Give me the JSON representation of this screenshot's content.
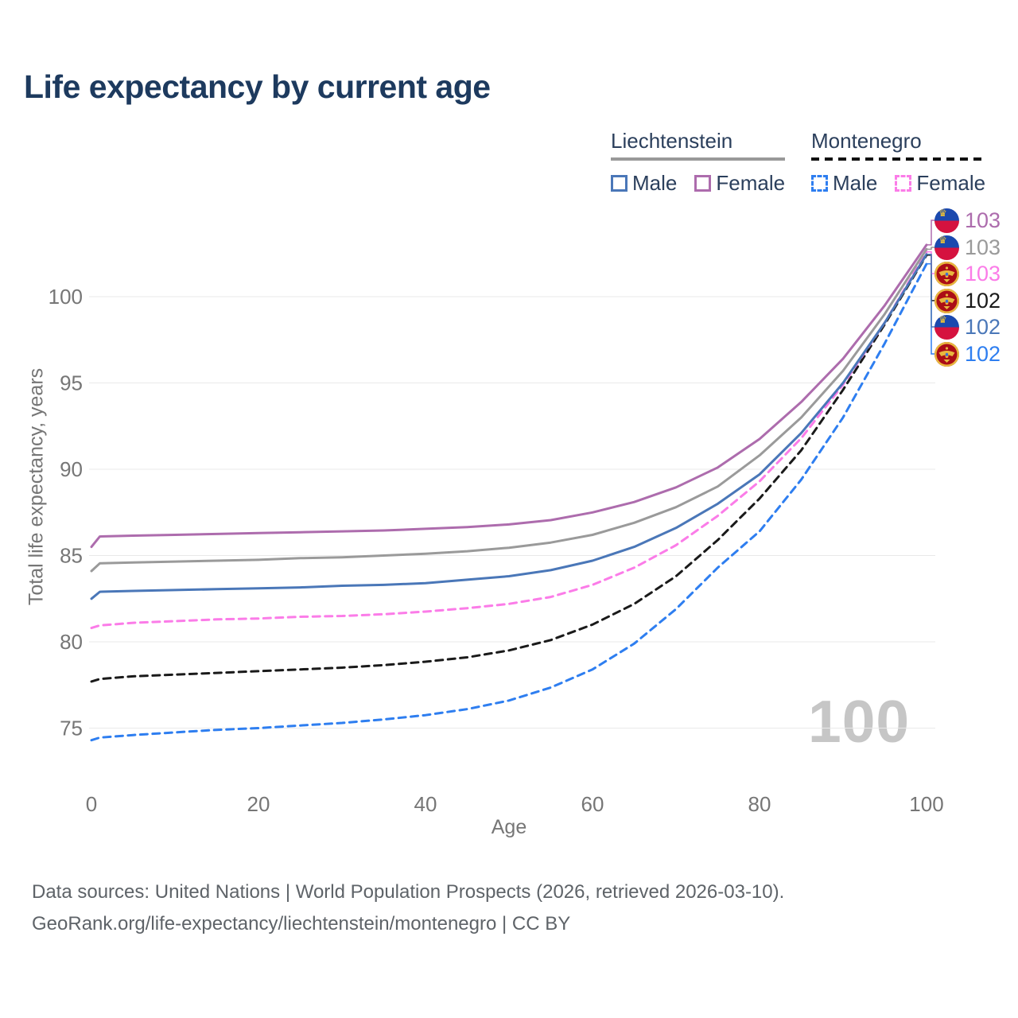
{
  "title": "Life expectancy by current age",
  "legend": {
    "liechtenstein": {
      "name": "Liechtenstein",
      "male_label": "Male",
      "female_label": "Female"
    },
    "montenegro": {
      "name": "Montenegro",
      "male_label": "Male",
      "female_label": "Female"
    }
  },
  "age_watermark": "100",
  "footer": {
    "line1": "Data sources: United Nations | World Population Prospects (2026, retrieved 2026-03-10).",
    "line2": "GeoRank.org/life-expectancy/liechtenstein/montenegro | CC BY"
  },
  "chart_data": {
    "type": "line",
    "title": "Life expectancy by current age",
    "xlabel": "Age",
    "ylabel": "Total life expectancy, years",
    "x_ticks": [
      0,
      20,
      40,
      60,
      80,
      100
    ],
    "y_ticks": [
      75,
      80,
      85,
      90,
      95,
      100
    ],
    "xlim": [
      0,
      100
    ],
    "ylim": [
      73.5,
      103.5
    ],
    "grid": "horizontal-only",
    "legend_position": "top-right",
    "ages": [
      0,
      1,
      5,
      10,
      15,
      20,
      25,
      30,
      35,
      40,
      45,
      50,
      55,
      60,
      65,
      70,
      75,
      80,
      85,
      90,
      95,
      100
    ],
    "series": [
      {
        "id": "me-male",
        "name": "Montenegro Male",
        "country": "montenegro",
        "sex": "Male",
        "color": "#2e7ef0",
        "dashed": true,
        "end_label": "102",
        "label_row": 5,
        "values": [
          74.3,
          74.45,
          74.6,
          74.75,
          74.9,
          75.0,
          75.15,
          75.3,
          75.5,
          75.75,
          76.1,
          76.6,
          77.35,
          78.4,
          79.9,
          81.9,
          84.3,
          86.4,
          89.4,
          93.0,
          97.3,
          101.9
        ]
      },
      {
        "id": "me-both",
        "name": "Montenegro",
        "country": "montenegro",
        "sex": "Both sexes",
        "color": "#1a1a1a",
        "dashed": true,
        "end_label": "102",
        "label_row": 3,
        "values": [
          77.7,
          77.85,
          78.0,
          78.1,
          78.2,
          78.3,
          78.4,
          78.5,
          78.65,
          78.85,
          79.1,
          79.5,
          80.1,
          81.0,
          82.2,
          83.8,
          85.9,
          88.3,
          91.1,
          94.6,
          98.4,
          102.4
        ]
      },
      {
        "id": "me-female",
        "name": "Montenegro Female",
        "country": "montenegro",
        "sex": "Female",
        "color": "#fb7ce8",
        "dashed": true,
        "end_label": "103",
        "label_row": 2,
        "values": [
          80.8,
          80.95,
          81.1,
          81.2,
          81.3,
          81.35,
          81.45,
          81.5,
          81.6,
          81.75,
          81.95,
          82.2,
          82.6,
          83.3,
          84.3,
          85.6,
          87.3,
          89.3,
          91.8,
          94.9,
          98.5,
          102.6
        ]
      },
      {
        "id": "li-male",
        "name": "Liechtenstein Male",
        "country": "liechtenstein",
        "sex": "Male",
        "color": "#4a77b8",
        "dashed": false,
        "end_label": "102",
        "label_row": 4,
        "values": [
          82.5,
          82.9,
          82.95,
          83.0,
          83.05,
          83.1,
          83.15,
          83.25,
          83.3,
          83.4,
          83.6,
          83.8,
          84.15,
          84.7,
          85.5,
          86.6,
          88.0,
          89.7,
          92.1,
          95.0,
          98.5,
          102.45
        ]
      },
      {
        "id": "li-both",
        "name": "Liechtenstein",
        "country": "liechtenstein",
        "sex": "Both sexes",
        "color": "#9a9a9a",
        "dashed": false,
        "end_label": "103",
        "label_row": 1,
        "values": [
          84.1,
          84.55,
          84.6,
          84.65,
          84.7,
          84.75,
          84.85,
          84.9,
          85.0,
          85.1,
          85.25,
          85.45,
          85.75,
          86.2,
          86.9,
          87.8,
          89.0,
          90.8,
          93.0,
          95.7,
          99.0,
          102.75
        ]
      },
      {
        "id": "li-female",
        "name": "Liechtenstein Female",
        "country": "liechtenstein",
        "sex": "Female",
        "color": "#ad6cad",
        "dashed": false,
        "end_label": "103",
        "label_row": 0,
        "values": [
          85.5,
          86.1,
          86.15,
          86.2,
          86.25,
          86.3,
          86.35,
          86.4,
          86.45,
          86.55,
          86.65,
          86.8,
          87.05,
          87.5,
          88.1,
          88.95,
          90.1,
          91.75,
          93.9,
          96.4,
          99.5,
          103.0
        ]
      }
    ]
  }
}
